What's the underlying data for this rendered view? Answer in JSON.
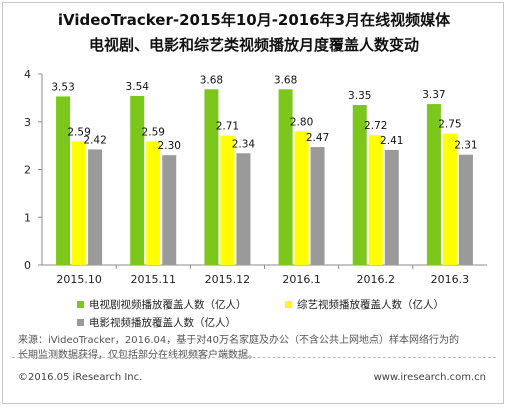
{
  "title_line1": "iVideoTracker-2015年10月-2016年3月在线视频媒体",
  "title_line2": "电视剧、电影和综艺类视频播放月度覆盖人数变动",
  "chart_data": {
    "type": "bar",
    "categories": [
      "2015.10",
      "2015.11",
      "2015.12",
      "2016.1",
      "2016.2",
      "2016.3"
    ],
    "series": [
      {
        "name": "电视剧视频播放覆盖人数（亿人）",
        "values": [
          3.53,
          3.54,
          3.68,
          3.68,
          3.35,
          3.37
        ],
        "color": "#7dc61b"
      },
      {
        "name": "综艺视频播放覆盖人数（亿人）",
        "values": [
          2.59,
          2.59,
          2.71,
          2.8,
          2.72,
          2.75
        ],
        "color": "#ffff00"
      },
      {
        "name": "电影视频播放覆盖人数（亿人）",
        "values": [
          2.42,
          2.3,
          2.34,
          2.47,
          2.41,
          2.31
        ],
        "color": "#9a9a9a"
      }
    ],
    "ylim": [
      0,
      4
    ],
    "yticks": [
      "0",
      "1",
      "2",
      "3",
      "4"
    ],
    "grid": false,
    "legend": "bottom"
  },
  "source_line1": "来源：iVideoTracker，2016.04，基于对40万名家庭及办公（不含公共上网地点）样本网络行为的",
  "source_line2": "长期监测数据获得，仅包括部分在线视频客户端数据。",
  "footer_left": "©2016.05 iResearch Inc.",
  "footer_right": "www.iresearch.com.cn"
}
